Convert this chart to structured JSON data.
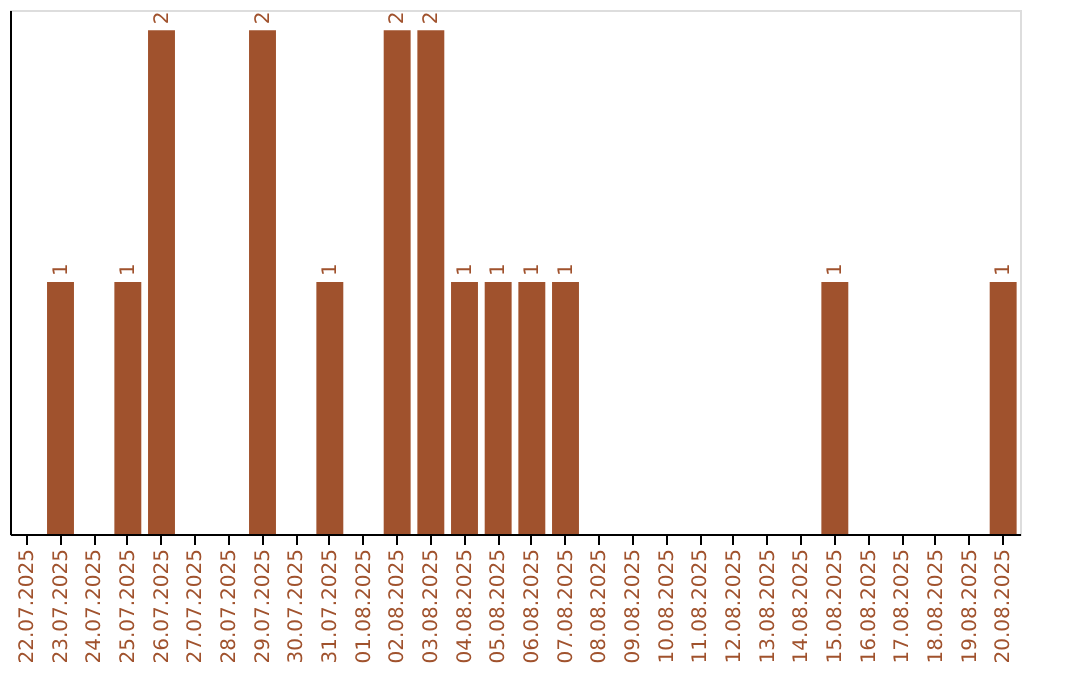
{
  "chart_data": {
    "type": "bar",
    "categories": [
      "22.07.2025",
      "23.07.2025",
      "24.07.2025",
      "25.07.2025",
      "26.07.2025",
      "27.07.2025",
      "28.07.2025",
      "29.07.2025",
      "30.07.2025",
      "31.07.2025",
      "01.08.2025",
      "02.08.2025",
      "03.08.2025",
      "04.08.2025",
      "05.08.2025",
      "06.08.2025",
      "07.08.2025",
      "08.08.2025",
      "09.08.2025",
      "10.08.2025",
      "11.08.2025",
      "12.08.2025",
      "13.08.2025",
      "14.08.2025",
      "15.08.2025",
      "16.08.2025",
      "17.08.2025",
      "18.08.2025",
      "19.08.2025",
      "20.08.2025"
    ],
    "values": [
      0,
      1,
      0,
      1,
      2,
      0,
      0,
      2,
      0,
      1,
      0,
      2,
      2,
      1,
      1,
      1,
      1,
      0,
      0,
      0,
      0,
      0,
      0,
      0,
      1,
      0,
      0,
      0,
      0,
      1
    ],
    "value_labels": [
      null,
      "1",
      null,
      "1",
      "2",
      null,
      null,
      "2",
      null,
      "1",
      null,
      "2",
      "2",
      "1",
      "1",
      "1",
      "1",
      null,
      null,
      null,
      null,
      null,
      null,
      null,
      "1",
      null,
      null,
      null,
      null,
      "1"
    ],
    "color": "#a0522d",
    "tick_labels": "x",
    "grid": false
  }
}
